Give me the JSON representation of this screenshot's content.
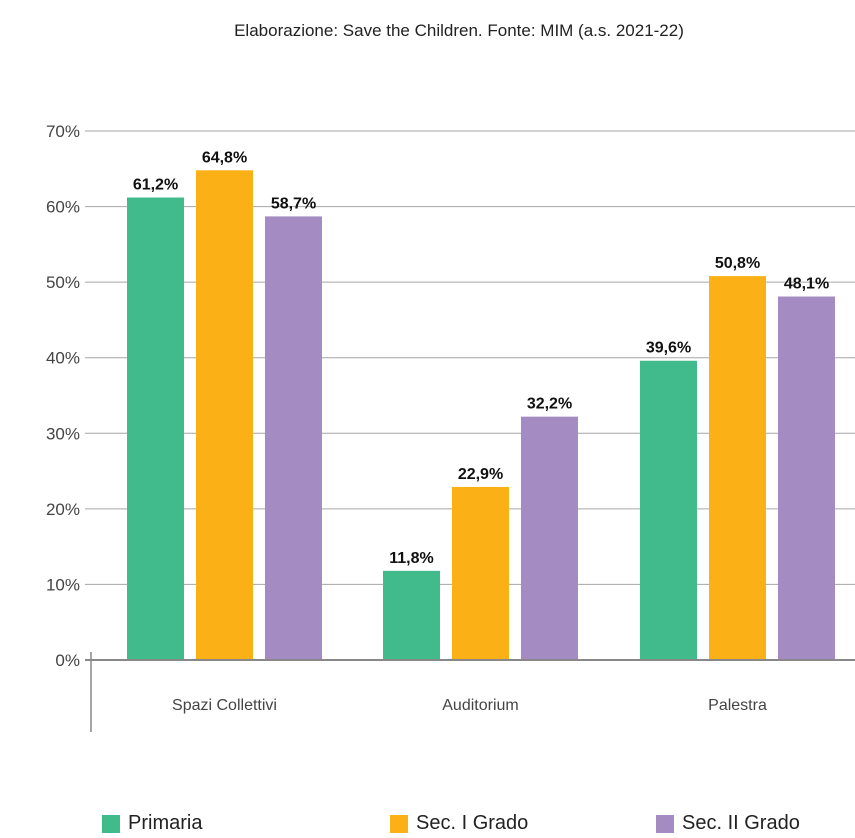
{
  "chart_data": {
    "type": "bar",
    "subtitle": "Elaborazione: Save the Children. Fonte: MIM (a.s. 2021-22)",
    "categories": [
      "Spazi Collettivi",
      "Auditorium",
      "Palestra"
    ],
    "series": [
      {
        "name": "Primaria",
        "color": "#41bb8c",
        "values": [
          61.2,
          11.8,
          39.6
        ],
        "labels": [
          "61,2%",
          "11,8%",
          "39,6%"
        ]
      },
      {
        "name": "Sec. I Grado",
        "color": "#fbb116",
        "values": [
          64.8,
          22.9,
          50.8
        ],
        "labels": [
          "64,8%",
          "22,9%",
          "50,8%"
        ]
      },
      {
        "name": "Sec. II Grado",
        "color": "#a48cc3",
        "values": [
          58.7,
          32.2,
          48.1
        ],
        "labels": [
          "58,7%",
          "32,2%",
          "48,1%"
        ]
      }
    ],
    "yticks": [
      "0%",
      "10%",
      "20%",
      "30%",
      "40%",
      "50%",
      "60%",
      "70%"
    ],
    "ylim": [
      0,
      70
    ],
    "grid": true,
    "legend": "bottom"
  }
}
